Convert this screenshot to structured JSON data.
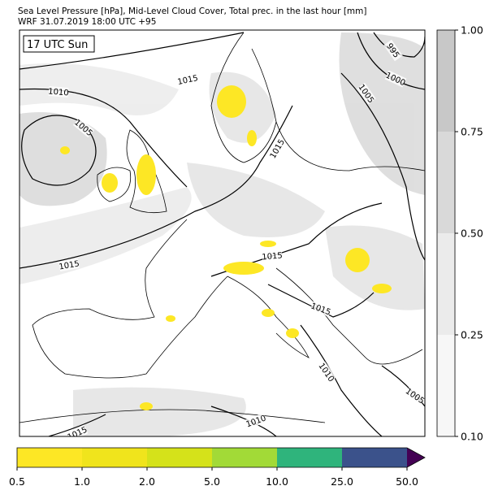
{
  "header": {
    "title": "Sea Level Pressure [hPa], Mid-Level Cloud Cover, Total prec. in the last hour [mm]",
    "subtitle": "WRF 31.07.2019 18:00 UTC +95"
  },
  "map": {
    "time_label": "17 UTC Sun",
    "isobar_labels": [
      "1015",
      "1010",
      "1005",
      "995",
      "1000",
      "1005",
      "1015",
      "1015",
      "1015",
      "1015",
      "1010",
      "1005",
      "1010",
      "1015"
    ]
  },
  "cloud_colorbar": {
    "ticks": [
      "0.10",
      "0.25",
      "0.50",
      "0.75",
      "1.00"
    ],
    "colors": [
      "#f7f7f7",
      "#ebebeb",
      "#d9d9d9",
      "#c8c8c8"
    ]
  },
  "precip_colorbar": {
    "ticks": [
      "0.5",
      "1.0",
      "2.0",
      "5.0",
      "10.0",
      "25.0",
      "50.0"
    ],
    "colors": [
      "#fde725",
      "#f0e41c",
      "#d5e21a",
      "#a2da37",
      "#2fb47c",
      "#3b528b"
    ],
    "extend_color": "#440154"
  }
}
